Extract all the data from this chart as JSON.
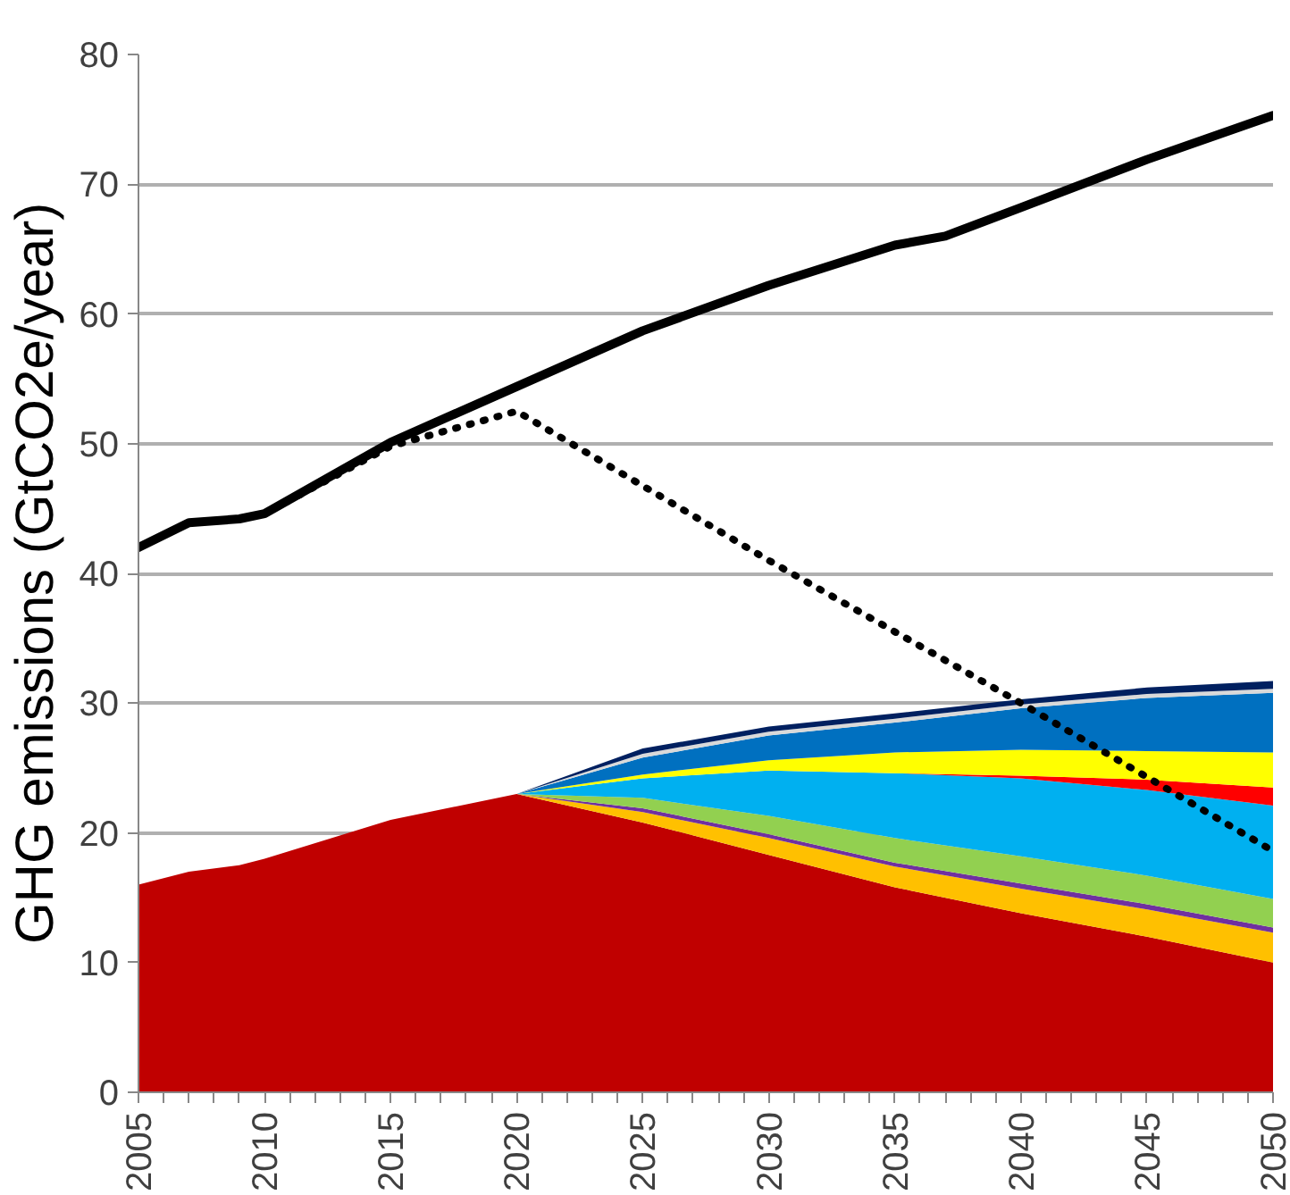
{
  "chart_data": {
    "type": "area",
    "stacked": true,
    "ylabel": "GHG emissions (GtCO2e/year)",
    "x": [
      2005,
      2007,
      2009,
      2010,
      2015,
      2020,
      2025,
      2030,
      2035,
      2040,
      2045,
      2050
    ],
    "xlim": [
      2005,
      2050
    ],
    "ylim": [
      0,
      80
    ],
    "yticks": [
      0,
      10,
      20,
      30,
      40,
      50,
      60,
      70,
      80
    ],
    "xticks": [
      2005,
      {
        "value": 2006,
        "label": null
      },
      {
        "value": 2007,
        "label": null
      },
      {
        "value": 2008,
        "label": null
      },
      {
        "value": 2009,
        "label": null
      },
      2010,
      {
        "value": 2011,
        "label": null
      },
      {
        "value": 2012,
        "label": null
      },
      {
        "value": 2013,
        "label": null
      },
      {
        "value": 2014,
        "label": null
      },
      2015,
      {
        "value": 2016,
        "label": null
      },
      {
        "value": 2017,
        "label": null
      },
      {
        "value": 2018,
        "label": null
      },
      {
        "value": 2019,
        "label": null
      },
      2020,
      {
        "value": 2021,
        "label": null
      },
      {
        "value": 2022,
        "label": null
      },
      {
        "value": 2023,
        "label": null
      },
      {
        "value": 2024,
        "label": null
      },
      2025,
      {
        "value": 2026,
        "label": null
      },
      {
        "value": 2027,
        "label": null
      },
      {
        "value": 2028,
        "label": null
      },
      {
        "value": 2029,
        "label": null
      },
      2030,
      {
        "value": 2031,
        "label": null
      },
      {
        "value": 2032,
        "label": null
      },
      {
        "value": 2033,
        "label": null
      },
      {
        "value": 2034,
        "label": null
      },
      2035,
      {
        "value": 2036,
        "label": null
      },
      {
        "value": 2037,
        "label": null
      },
      {
        "value": 2038,
        "label": null
      },
      {
        "value": 2039,
        "label": null
      },
      2040,
      {
        "value": 2041,
        "label": null
      },
      {
        "value": 2042,
        "label": null
      },
      {
        "value": 2043,
        "label": null
      },
      {
        "value": 2044,
        "label": null
      },
      2045,
      {
        "value": 2046,
        "label": null
      },
      {
        "value": 2047,
        "label": null
      },
      {
        "value": 2048,
        "label": null
      },
      {
        "value": 2049,
        "label": null
      },
      2050
    ],
    "grid": "y",
    "series": [
      {
        "color": "#c00000",
        "values": [
          16,
          17,
          17.5,
          18,
          21,
          23,
          20.8,
          18.3,
          15.8,
          13.8,
          12,
          10
        ]
      },
      {
        "color": "#ffc000",
        "values": [
          0,
          0,
          0,
          0,
          0,
          0,
          0.8,
          1.3,
          1.6,
          1.9,
          2.1,
          2.3
        ]
      },
      {
        "color": "#7030a0",
        "values": [
          0,
          0,
          0,
          0,
          0,
          0,
          0.3,
          0.3,
          0.3,
          0.4,
          0.4,
          0.4
        ]
      },
      {
        "color": "#92d050",
        "values": [
          0,
          0,
          0,
          0,
          0,
          0,
          0.8,
          1.4,
          1.9,
          2.1,
          2.2,
          2.2
        ]
      },
      {
        "color": "#00b0f0",
        "values": [
          0,
          0,
          0,
          0,
          0,
          0,
          1.5,
          3.5,
          5.0,
          6.0,
          6.6,
          7.2
        ]
      },
      {
        "color": "#ff0000",
        "values": [
          0,
          0,
          0,
          0,
          0,
          0,
          0,
          0,
          0,
          0.2,
          0.8,
          1.4
        ]
      },
      {
        "color": "#ffff00",
        "values": [
          0,
          0,
          0,
          0,
          0,
          0,
          0.3,
          0.8,
          1.6,
          2.0,
          2.2,
          2.7
        ]
      },
      {
        "color": "#0070c0",
        "values": [
          0,
          0,
          0,
          0,
          0,
          0,
          1.3,
          1.9,
          2.3,
          3.2,
          4.1,
          4.6
        ]
      },
      {
        "color": "#d9d9d9",
        "values": [
          0,
          0,
          0,
          0,
          0,
          0,
          0.3,
          0.3,
          0.3,
          0.3,
          0.3,
          0.3
        ]
      },
      {
        "color": "#002060",
        "values": [
          0,
          0,
          0,
          0,
          0,
          0,
          0.4,
          0.4,
          0.4,
          0.4,
          0.5,
          0.6
        ]
      },
      {
        "type": "line",
        "color": "#000000",
        "line_style": "solid",
        "x": [
          2005,
          2007,
          2009,
          2010,
          2015,
          2020,
          2025,
          2030,
          2035,
          2037,
          2040,
          2045,
          2050
        ],
        "values": [
          42.0,
          43.9,
          44.2,
          44.6,
          50.1,
          54.4,
          58.7,
          62.2,
          65.3,
          66.0,
          68.2,
          71.9,
          75.3
        ]
      },
      {
        "type": "line",
        "color": "#000000",
        "line_style": "dotted",
        "x": [
          2005,
          2007,
          2009,
          2010,
          2015,
          2020,
          2030,
          2040,
          2050
        ],
        "values": [
          42.0,
          43.9,
          44.2,
          44.6,
          49.8,
          52.5,
          41.0,
          30.0,
          18.6
        ]
      }
    ]
  }
}
